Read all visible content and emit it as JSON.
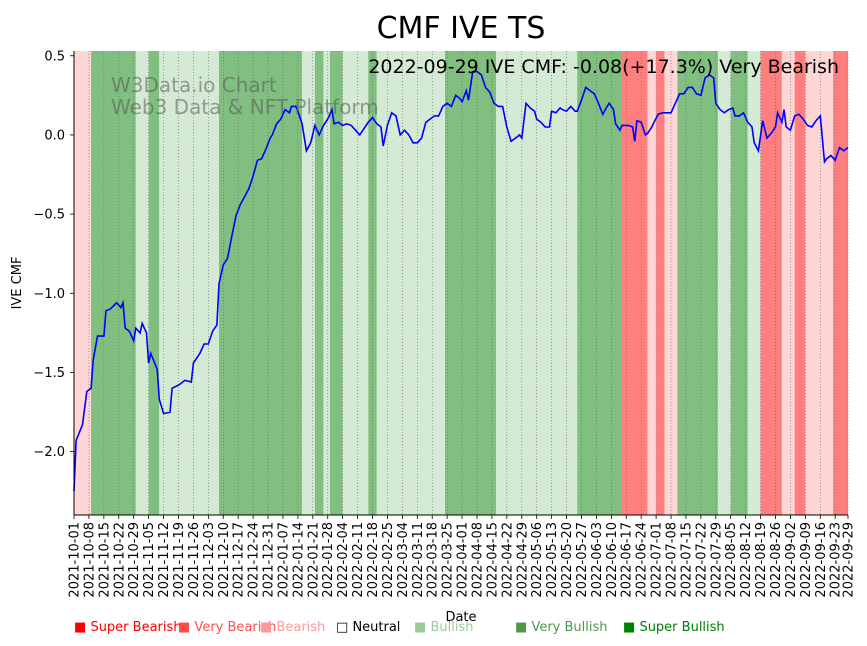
{
  "chart_data": {
    "type": "line",
    "title": "CMF IVE TS",
    "annotation": "2022-09-29 IVE CMF: -0.08(+17.3%) Very Bearish",
    "watermark_line1": "W3Data.io Chart",
    "watermark_line2": "Web3 Data & NFT Platform",
    "xlabel": "Date",
    "ylabel": "IVE CMF",
    "ylim": [
      -2.4,
      0.53
    ],
    "yticks": [
      0.5,
      0.0,
      -0.5,
      -1.0,
      -1.5,
      -2.0
    ],
    "ytick_labels": [
      "0.5",
      "0.0",
      "−0.5",
      "−1.0",
      "−1.5",
      "−2.0"
    ],
    "x_range": [
      "2021-10-01",
      "2022-09-29"
    ],
    "xticks": [
      "2021-10-01",
      "2021-10-08",
      "2021-10-15",
      "2021-10-22",
      "2021-10-29",
      "2021-11-05",
      "2021-11-12",
      "2021-11-19",
      "2021-11-26",
      "2021-12-03",
      "2021-12-10",
      "2021-12-17",
      "2021-12-24",
      "2021-12-31",
      "2022-01-07",
      "2022-01-14",
      "2022-01-21",
      "2022-01-28",
      "2022-02-04",
      "2022-02-11",
      "2022-02-18",
      "2022-02-25",
      "2022-03-04",
      "2022-03-11",
      "2022-03-18",
      "2022-03-25",
      "2022-04-01",
      "2022-04-08",
      "2022-04-15",
      "2022-04-22",
      "2022-04-29",
      "2022-05-06",
      "2022-05-13",
      "2022-05-20",
      "2022-05-27",
      "2022-06-03",
      "2022-06-10",
      "2022-06-17",
      "2022-06-24",
      "2022-07-01",
      "2022-07-08",
      "2022-07-15",
      "2022-07-22",
      "2022-07-29",
      "2022-08-05",
      "2022-08-12",
      "2022-08-19",
      "2022-08-26",
      "2022-09-02",
      "2022-09-09",
      "2022-09-16",
      "2022-09-23",
      "2022-09-29"
    ],
    "series": [
      {
        "name": "IVE CMF",
        "color": "#0000ff",
        "points": [
          [
            "2021-10-01",
            -2.25
          ],
          [
            "2021-10-02",
            -1.93
          ],
          [
            "2021-10-05",
            -1.83
          ],
          [
            "2021-10-07",
            -1.62
          ],
          [
            "2021-10-09",
            -1.6
          ],
          [
            "2021-10-10",
            -1.42
          ],
          [
            "2021-10-12",
            -1.27
          ],
          [
            "2021-10-15",
            -1.27
          ],
          [
            "2021-10-16",
            -1.11
          ],
          [
            "2021-10-18",
            -1.1
          ],
          [
            "2021-10-21",
            -1.06
          ],
          [
            "2021-10-23",
            -1.09
          ],
          [
            "2021-10-24",
            -1.06
          ],
          [
            "2021-10-25",
            -1.22
          ],
          [
            "2021-10-27",
            -1.24
          ],
          [
            "2021-10-29",
            -1.3
          ],
          [
            "2021-10-30",
            -1.22
          ],
          [
            "2021-11-01",
            -1.25
          ],
          [
            "2021-11-02",
            -1.19
          ],
          [
            "2021-11-04",
            -1.25
          ],
          [
            "2021-11-05",
            -1.44
          ],
          [
            "2021-11-06",
            -1.38
          ],
          [
            "2021-11-09",
            -1.48
          ],
          [
            "2021-11-10",
            -1.67
          ],
          [
            "2021-11-12",
            -1.76
          ],
          [
            "2021-11-15",
            -1.75
          ],
          [
            "2021-11-16",
            -1.6
          ],
          [
            "2021-11-19",
            -1.58
          ],
          [
            "2021-11-20",
            -1.57
          ],
          [
            "2021-11-22",
            -1.55
          ],
          [
            "2021-11-25",
            -1.56
          ],
          [
            "2021-11-26",
            -1.44
          ],
          [
            "2021-11-29",
            -1.38
          ],
          [
            "2021-12-01",
            -1.32
          ],
          [
            "2021-12-03",
            -1.32
          ],
          [
            "2021-12-05",
            -1.24
          ],
          [
            "2021-12-07",
            -1.2
          ],
          [
            "2021-12-08",
            -0.94
          ],
          [
            "2021-12-10",
            -0.82
          ],
          [
            "2021-12-12",
            -0.78
          ],
          [
            "2021-12-14",
            -0.64
          ],
          [
            "2021-12-16",
            -0.51
          ],
          [
            "2021-12-18",
            -0.44
          ],
          [
            "2021-12-20",
            -0.39
          ],
          [
            "2021-12-22",
            -0.34
          ],
          [
            "2021-12-24",
            -0.26
          ],
          [
            "2021-12-26",
            -0.16
          ],
          [
            "2021-12-28",
            -0.15
          ],
          [
            "2021-12-30",
            -0.09
          ],
          [
            "2022-01-01",
            -0.02
          ],
          [
            "2022-01-02",
            0.0
          ],
          [
            "2022-01-04",
            0.07
          ],
          [
            "2022-01-06",
            0.1
          ],
          [
            "2022-01-08",
            0.16
          ],
          [
            "2022-01-10",
            0.14
          ],
          [
            "2022-01-11",
            0.18
          ],
          [
            "2022-01-13",
            0.18
          ],
          [
            "2022-01-14",
            0.15
          ],
          [
            "2022-01-16",
            0.07
          ],
          [
            "2022-01-18",
            -0.1
          ],
          [
            "2022-01-20",
            -0.05
          ],
          [
            "2022-01-22",
            0.06
          ],
          [
            "2022-01-24",
            0.0
          ],
          [
            "2022-01-26",
            0.06
          ],
          [
            "2022-01-28",
            0.1
          ],
          [
            "2022-01-30",
            0.16
          ],
          [
            "2022-01-31",
            0.07
          ],
          [
            "2022-02-02",
            0.08
          ],
          [
            "2022-02-04",
            0.06
          ],
          [
            "2022-02-06",
            0.07
          ],
          [
            "2022-02-08",
            0.06
          ],
          [
            "2022-02-10",
            0.03
          ],
          [
            "2022-02-12",
            0.0
          ],
          [
            "2022-02-14",
            0.04
          ],
          [
            "2022-02-16",
            0.08
          ],
          [
            "2022-02-18",
            0.11
          ],
          [
            "2022-02-20",
            0.07
          ],
          [
            "2022-02-22",
            0.05
          ],
          [
            "2022-02-23",
            -0.07
          ],
          [
            "2022-02-25",
            0.06
          ],
          [
            "2022-02-27",
            0.14
          ],
          [
            "2022-03-01",
            0.12
          ],
          [
            "2022-03-03",
            0.0
          ],
          [
            "2022-03-05",
            0.03
          ],
          [
            "2022-03-07",
            0.0
          ],
          [
            "2022-03-09",
            -0.05
          ],
          [
            "2022-03-11",
            -0.05
          ],
          [
            "2022-03-13",
            -0.02
          ],
          [
            "2022-03-15",
            0.08
          ],
          [
            "2022-03-17",
            0.1
          ],
          [
            "2022-03-19",
            0.12
          ],
          [
            "2022-03-21",
            0.12
          ],
          [
            "2022-03-23",
            0.18
          ],
          [
            "2022-03-25",
            0.2
          ],
          [
            "2022-03-27",
            0.18
          ],
          [
            "2022-03-29",
            0.25
          ],
          [
            "2022-03-31",
            0.23
          ],
          [
            "2022-04-01",
            0.21
          ],
          [
            "2022-04-03",
            0.28
          ],
          [
            "2022-04-04",
            0.22
          ],
          [
            "2022-04-06",
            0.4
          ],
          [
            "2022-04-08",
            0.4
          ],
          [
            "2022-04-10",
            0.38
          ],
          [
            "2022-04-12",
            0.3
          ],
          [
            "2022-04-14",
            0.27
          ],
          [
            "2022-04-16",
            0.2
          ],
          [
            "2022-04-18",
            0.18
          ],
          [
            "2022-04-20",
            0.18
          ],
          [
            "2022-04-22",
            0.05
          ],
          [
            "2022-04-24",
            -0.04
          ],
          [
            "2022-04-26",
            -0.02
          ],
          [
            "2022-04-28",
            0.0
          ],
          [
            "2022-04-29",
            -0.02
          ],
          [
            "2022-05-01",
            0.2
          ],
          [
            "2022-05-03",
            0.17
          ],
          [
            "2022-05-05",
            0.15
          ],
          [
            "2022-05-06",
            0.1
          ],
          [
            "2022-05-08",
            0.08
          ],
          [
            "2022-05-10",
            0.05
          ],
          [
            "2022-05-12",
            0.05
          ],
          [
            "2022-05-13",
            0.15
          ],
          [
            "2022-05-15",
            0.14
          ],
          [
            "2022-05-17",
            0.17
          ],
          [
            "2022-05-18",
            0.16
          ],
          [
            "2022-05-20",
            0.15
          ],
          [
            "2022-05-22",
            0.18
          ],
          [
            "2022-05-24",
            0.15
          ],
          [
            "2022-05-25",
            0.15
          ],
          [
            "2022-05-27",
            0.22
          ],
          [
            "2022-05-29",
            0.3
          ],
          [
            "2022-05-31",
            0.28
          ],
          [
            "2022-06-02",
            0.26
          ],
          [
            "2022-06-04",
            0.2
          ],
          [
            "2022-06-06",
            0.13
          ],
          [
            "2022-06-08",
            0.18
          ],
          [
            "2022-06-09",
            0.2
          ],
          [
            "2022-06-11",
            0.16
          ],
          [
            "2022-06-12",
            0.07
          ],
          [
            "2022-06-14",
            0.03
          ],
          [
            "2022-06-15",
            0.06
          ],
          [
            "2022-06-17",
            0.06
          ],
          [
            "2022-06-18",
            0.06
          ],
          [
            "2022-06-20",
            0.05
          ],
          [
            "2022-06-21",
            -0.04
          ],
          [
            "2022-06-22",
            0.09
          ],
          [
            "2022-06-24",
            0.08
          ],
          [
            "2022-06-26",
            0.0
          ],
          [
            "2022-06-27",
            0.01
          ],
          [
            "2022-06-29",
            0.05
          ],
          [
            "2022-06-30",
            0.08
          ],
          [
            "2022-07-02",
            0.13
          ],
          [
            "2022-07-04",
            0.14
          ],
          [
            "2022-07-06",
            0.14
          ],
          [
            "2022-07-08",
            0.14
          ],
          [
            "2022-07-10",
            0.2
          ],
          [
            "2022-07-12",
            0.26
          ],
          [
            "2022-07-14",
            0.26
          ],
          [
            "2022-07-16",
            0.3
          ],
          [
            "2022-07-18",
            0.3
          ],
          [
            "2022-07-20",
            0.26
          ],
          [
            "2022-07-22",
            0.25
          ],
          [
            "2022-07-24",
            0.36
          ],
          [
            "2022-07-26",
            0.38
          ],
          [
            "2022-07-28",
            0.36
          ],
          [
            "2022-07-29",
            0.2
          ],
          [
            "2022-07-31",
            0.16
          ],
          [
            "2022-08-02",
            0.14
          ],
          [
            "2022-08-04",
            0.16
          ],
          [
            "2022-08-06",
            0.17
          ],
          [
            "2022-08-07",
            0.12
          ],
          [
            "2022-08-09",
            0.12
          ],
          [
            "2022-08-11",
            0.14
          ],
          [
            "2022-08-13",
            0.08
          ],
          [
            "2022-08-15",
            0.05
          ],
          [
            "2022-08-16",
            -0.05
          ],
          [
            "2022-08-18",
            -0.1
          ],
          [
            "2022-08-20",
            0.09
          ],
          [
            "2022-08-22",
            -0.02
          ],
          [
            "2022-08-24",
            0.01
          ],
          [
            "2022-08-26",
            0.05
          ],
          [
            "2022-08-27",
            0.14
          ],
          [
            "2022-08-29",
            0.08
          ],
          [
            "2022-08-30",
            0.16
          ],
          [
            "2022-08-31",
            0.05
          ],
          [
            "2022-09-02",
            0.03
          ],
          [
            "2022-09-04",
            0.12
          ],
          [
            "2022-09-06",
            0.13
          ],
          [
            "2022-09-08",
            0.1
          ],
          [
            "2022-09-10",
            0.06
          ],
          [
            "2022-09-12",
            0.05
          ],
          [
            "2022-09-14",
            0.09
          ],
          [
            "2022-09-16",
            0.12
          ],
          [
            "2022-09-18",
            -0.17
          ],
          [
            "2022-09-19",
            -0.15
          ],
          [
            "2022-09-21",
            -0.13
          ],
          [
            "2022-09-23",
            -0.16
          ],
          [
            "2022-09-25",
            -0.08
          ],
          [
            "2022-09-27",
            -0.1
          ],
          [
            "2022-09-29",
            -0.08
          ]
        ]
      }
    ],
    "regions": [
      {
        "start": "2021-10-01",
        "end": "2021-10-09",
        "category": "Bearish"
      },
      {
        "start": "2021-10-09",
        "end": "2021-10-30",
        "category": "Very Bullish"
      },
      {
        "start": "2021-10-30",
        "end": "2021-11-05",
        "category": "Bullish"
      },
      {
        "start": "2021-11-05",
        "end": "2021-11-10",
        "category": "Very Bullish"
      },
      {
        "start": "2021-11-10",
        "end": "2021-12-08",
        "category": "Bullish"
      },
      {
        "start": "2021-12-08",
        "end": "2022-01-16",
        "category": "Very Bullish"
      },
      {
        "start": "2022-01-16",
        "end": "2022-01-22",
        "category": "Bullish"
      },
      {
        "start": "2022-01-22",
        "end": "2022-01-26",
        "category": "Very Bullish"
      },
      {
        "start": "2022-01-26",
        "end": "2022-01-29",
        "category": "Bullish"
      },
      {
        "start": "2022-01-29",
        "end": "2022-02-04",
        "category": "Very Bullish"
      },
      {
        "start": "2022-02-04",
        "end": "2022-02-16",
        "category": "Bullish"
      },
      {
        "start": "2022-02-16",
        "end": "2022-02-20",
        "category": "Very Bullish"
      },
      {
        "start": "2022-02-20",
        "end": "2022-03-24",
        "category": "Bullish"
      },
      {
        "start": "2022-03-24",
        "end": "2022-04-17",
        "category": "Very Bullish"
      },
      {
        "start": "2022-04-17",
        "end": "2022-05-25",
        "category": "Bullish"
      },
      {
        "start": "2022-05-25",
        "end": "2022-06-15",
        "category": "Very Bullish"
      },
      {
        "start": "2022-06-15",
        "end": "2022-06-27",
        "category": "Very Bearish"
      },
      {
        "start": "2022-06-27",
        "end": "2022-07-01",
        "category": "Bearish"
      },
      {
        "start": "2022-07-01",
        "end": "2022-07-05",
        "category": "Very Bearish"
      },
      {
        "start": "2022-07-05",
        "end": "2022-07-11",
        "category": "Bearish"
      },
      {
        "start": "2022-07-11",
        "end": "2022-07-30",
        "category": "Very Bullish"
      },
      {
        "start": "2022-07-30",
        "end": "2022-08-05",
        "category": "Bullish"
      },
      {
        "start": "2022-08-05",
        "end": "2022-08-13",
        "category": "Very Bullish"
      },
      {
        "start": "2022-08-13",
        "end": "2022-08-19",
        "category": "Bullish"
      },
      {
        "start": "2022-08-19",
        "end": "2022-08-29",
        "category": "Very Bearish"
      },
      {
        "start": "2022-08-29",
        "end": "2022-09-04",
        "category": "Bearish"
      },
      {
        "start": "2022-09-04",
        "end": "2022-09-09",
        "category": "Very Bearish"
      },
      {
        "start": "2022-09-09",
        "end": "2022-09-22",
        "category": "Bearish"
      },
      {
        "start": "2022-09-22",
        "end": "2022-09-29",
        "category": "Very Bearish"
      }
    ],
    "legend": [
      {
        "label": "Super Bearish",
        "swatch": "#ff0000",
        "text_color": "#ff0000"
      },
      {
        "label": "Very Bearish",
        "swatch": "#ff4d4d",
        "text_color": "#ff4d4d"
      },
      {
        "label": "Bearish",
        "swatch": "#ff9999",
        "text_color": "#ff9999"
      },
      {
        "label": "Neutral",
        "swatch": "#ffffff",
        "text_color": "#000000"
      },
      {
        "label": "Bullish",
        "swatch": "#99cc99",
        "text_color": "#99cc99"
      },
      {
        "label": "Very Bullish",
        "swatch": "#4d994d",
        "text_color": "#4d994d"
      },
      {
        "label": "Super Bullish",
        "swatch": "#008000",
        "text_color": "#008000"
      }
    ],
    "region_colors": {
      "Super Bearish": "#ff0000",
      "Very Bearish": "#ff7f7f",
      "Bearish": "#ffd6d6",
      "Neutral": "#ffffff",
      "Bullish": "#d5ead5",
      "Very Bullish": "#80bf80",
      "Super Bullish": "#008000"
    },
    "grid": "vertical-dotted"
  }
}
